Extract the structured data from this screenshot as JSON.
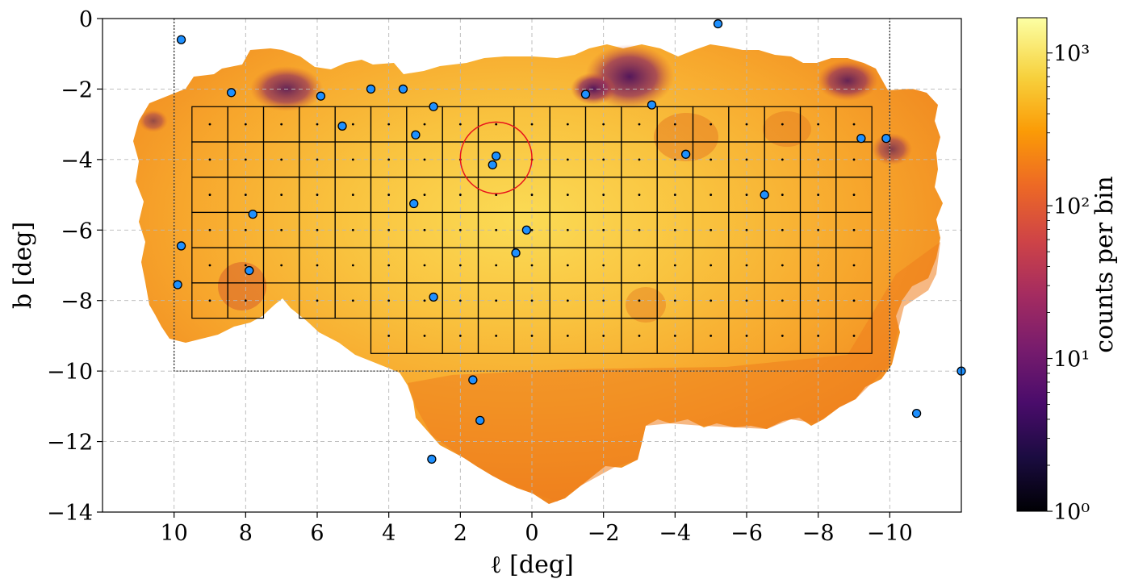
{
  "chart_data": {
    "type": "heatmap",
    "title": "",
    "xlabel": "ℓ [deg]",
    "ylabel": "b [deg]",
    "xlim": [
      12,
      -12
    ],
    "ylim": [
      -14,
      0
    ],
    "x_ticks": [
      10,
      8,
      6,
      4,
      2,
      0,
      -2,
      -4,
      -6,
      -8,
      -10
    ],
    "y_ticks": [
      0,
      -2,
      -4,
      -6,
      -8,
      -10,
      -12,
      -14
    ],
    "x_tick_labels": [
      "10",
      "8",
      "6",
      "4",
      "2",
      "0",
      "−2",
      "−4",
      "−6",
      "−8",
      "−10"
    ],
    "y_tick_labels": [
      "0",
      "−2",
      "−4",
      "−6",
      "−8",
      "−10",
      "−12",
      "−14"
    ],
    "grid": true,
    "colorbar": {
      "label": "counts per bin",
      "scale": "log",
      "range": [
        1,
        1700
      ],
      "ticks": [
        1,
        10,
        100,
        1000
      ],
      "tick_labels": [
        "10⁰",
        "10¹",
        "10²",
        "10³"
      ],
      "colormap": [
        "#000004",
        "#1b0c41",
        "#4a0c6b",
        "#781c6d",
        "#a52c60",
        "#cf4446",
        "#ed6925",
        "#fb9b06",
        "#f7d13d",
        "#fcffa4"
      ]
    },
    "footprint_outline": [
      [
        10,
        0
      ],
      [
        10,
        -10
      ],
      [
        -10,
        -10
      ],
      [
        -10,
        0
      ]
    ],
    "survey_grid": {
      "cell_size_deg": 1,
      "rows": [
        {
          "b_top": -2.5,
          "b_bottom": -3.5,
          "l_left": 9.5,
          "l_right": -9.5
        },
        {
          "b_top": -3.5,
          "b_bottom": -4.5,
          "l_left": 9.5,
          "l_right": -9.5
        },
        {
          "b_top": -4.5,
          "b_bottom": -5.5,
          "l_left": 9.5,
          "l_right": -9.5
        },
        {
          "b_top": -5.5,
          "b_bottom": -6.5,
          "l_left": 9.5,
          "l_right": -9.5
        },
        {
          "b_top": -6.5,
          "b_bottom": -7.5,
          "l_left": 9.5,
          "l_right": -9.5
        },
        {
          "b_top": -7.5,
          "b_bottom": -8.5,
          "l_left": 9.5,
          "l_right": 7.5
        },
        {
          "b_top": -7.5,
          "b_bottom": -8.5,
          "l_left": 6.5,
          "l_right": -9.5
        },
        {
          "b_top": -8.5,
          "b_bottom": -9.5,
          "l_left": 4.5,
          "l_right": -9.5
        }
      ]
    },
    "highlight_circle": {
      "l": 1.0,
      "b": -3.95,
      "radius": 1.0,
      "color": "#e8141c"
    },
    "points": [
      {
        "l": 9.8,
        "b": -0.6
      },
      {
        "l": 8.4,
        "b": -2.1
      },
      {
        "l": 5.9,
        "b": -2.2
      },
      {
        "l": 4.5,
        "b": -2.0
      },
      {
        "l": 3.6,
        "b": -2.0
      },
      {
        "l": 2.75,
        "b": -2.5
      },
      {
        "l": 5.3,
        "b": -3.05
      },
      {
        "l": 3.25,
        "b": -3.3
      },
      {
        "l": 1.0,
        "b": -3.9
      },
      {
        "l": 1.1,
        "b": -4.15
      },
      {
        "l": -1.5,
        "b": -2.15
      },
      {
        "l": -3.35,
        "b": -2.45
      },
      {
        "l": -4.3,
        "b": -3.85
      },
      {
        "l": -5.2,
        "b": -0.15
      },
      {
        "l": -6.5,
        "b": -5.0
      },
      {
        "l": -9.2,
        "b": -3.4
      },
      {
        "l": -9.9,
        "b": -3.4
      },
      {
        "l": 7.8,
        "b": -5.55
      },
      {
        "l": 3.3,
        "b": -5.25
      },
      {
        "l": 0.15,
        "b": -6.0
      },
      {
        "l": 0.45,
        "b": -6.65
      },
      {
        "l": 9.8,
        "b": -6.45
      },
      {
        "l": 7.9,
        "b": -7.15
      },
      {
        "l": 9.9,
        "b": -7.55
      },
      {
        "l": 2.75,
        "b": -7.9
      },
      {
        "l": 1.65,
        "b": -10.25
      },
      {
        "l": 1.45,
        "b": -11.4
      },
      {
        "l": 2.8,
        "b": -12.5
      },
      {
        "l": -10.75,
        "b": -11.2
      },
      {
        "l": -12.0,
        "b": -10.0
      }
    ],
    "point_color": "#1e90ff",
    "map_colors": {
      "low": "#e85d16",
      "mid": "#f8a321",
      "high": "#fbd34b",
      "dust": "#6a1d5e"
    }
  }
}
